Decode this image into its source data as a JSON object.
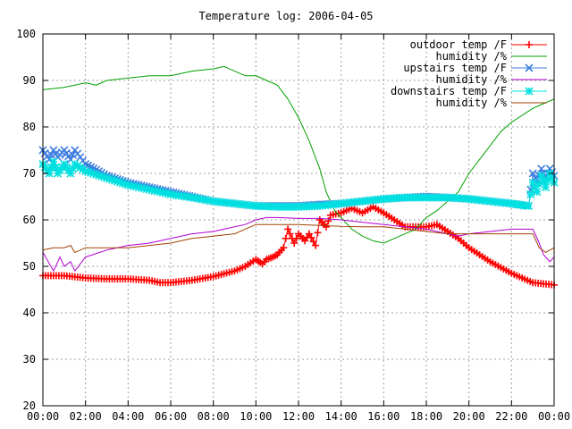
{
  "chart_data": {
    "type": "line",
    "title": "Temperature log: 2006-04-05",
    "xlabel": "",
    "ylabel": "",
    "xlim": [
      0,
      24
    ],
    "ylim": [
      20,
      100
    ],
    "grid": true,
    "legend_position": "top-right",
    "x_ticks": [
      {
        "value": 0,
        "label": "00:00"
      },
      {
        "value": 2,
        "label": "02:00"
      },
      {
        "value": 4,
        "label": "04:00"
      },
      {
        "value": 6,
        "label": "06:00"
      },
      {
        "value": 8,
        "label": "08:00"
      },
      {
        "value": 10,
        "label": "10:00"
      },
      {
        "value": 12,
        "label": "12:00"
      },
      {
        "value": 14,
        "label": "14:00"
      },
      {
        "value": 16,
        "label": "16:00"
      },
      {
        "value": 18,
        "label": "18:00"
      },
      {
        "value": 20,
        "label": "20:00"
      },
      {
        "value": 22,
        "label": "22:00"
      },
      {
        "value": 24,
        "label": "00:00"
      }
    ],
    "y_ticks": [
      20,
      30,
      40,
      50,
      60,
      70,
      80,
      90,
      100
    ],
    "series": [
      {
        "name": "outdoor temp /F",
        "color": "#ff0000",
        "marker": "plus",
        "x": [
          0,
          1,
          2,
          3,
          4,
          5,
          5.5,
          6,
          7,
          8,
          9,
          9.5,
          10,
          10.3,
          10.5,
          10.8,
          11,
          11.3,
          11.5,
          11.8,
          12,
          12.3,
          12.5,
          12.8,
          13,
          13.3,
          13.5,
          14,
          14.5,
          15,
          15.5,
          16,
          16.5,
          17,
          17.5,
          18,
          18.5,
          19,
          19.5,
          20,
          21,
          22,
          23,
          24
        ],
        "y": [
          48,
          48,
          47.5,
          47.3,
          47.3,
          47,
          46.5,
          46.5,
          47,
          47.8,
          49,
          50,
          51.5,
          50.5,
          51.5,
          52,
          52.5,
          54,
          58,
          55,
          57,
          55.5,
          57,
          54.5,
          60,
          58.5,
          61,
          61.5,
          62.5,
          61.5,
          62.8,
          61.5,
          60,
          58.5,
          58.5,
          58.5,
          59,
          57.5,
          56,
          54,
          51,
          48.5,
          46.5,
          46
        ]
      },
      {
        "name": "humidity /%",
        "color": "#00a000",
        "marker": "none",
        "x": [
          0,
          1,
          1.5,
          2,
          2.5,
          3,
          4,
          5,
          6,
          7,
          8,
          8.5,
          9,
          9.5,
          10,
          10.5,
          11,
          11.5,
          12,
          12.5,
          13,
          13.3,
          13.7,
          14,
          14.5,
          15,
          15.5,
          16,
          16.5,
          17,
          17.5,
          18,
          18.5,
          19,
          19.5,
          20,
          20.5,
          21,
          21.5,
          22,
          22.5,
          23,
          23.5,
          24
        ],
        "y": [
          88,
          88.5,
          89,
          89.5,
          89,
          90,
          90.5,
          91,
          91,
          92,
          92.5,
          93,
          92,
          91,
          91,
          90,
          89,
          86,
          82,
          77,
          71,
          66,
          62,
          60.5,
          58,
          56.5,
          55.5,
          55,
          56,
          57,
          58,
          60.5,
          62,
          64,
          66,
          70,
          73,
          76,
          79,
          81,
          82.5,
          84,
          85,
          86
        ]
      },
      {
        "name": "upstairs temp /F",
        "color": "#3f7fe0",
        "marker": "cross",
        "x": [
          0,
          0.3,
          0.5,
          0.7,
          1,
          1.3,
          1.5,
          2,
          3,
          4,
          5,
          6,
          7,
          8,
          9,
          10,
          11,
          12,
          13,
          14,
          15,
          16,
          17,
          18,
          19,
          20,
          21,
          22,
          22.8,
          23,
          23.2,
          23.4,
          23.6,
          23.8,
          24
        ],
        "y": [
          75,
          73,
          75,
          73.5,
          75,
          73,
          75,
          72,
          69.5,
          68,
          67,
          66,
          65,
          64,
          63.5,
          63,
          63,
          63,
          63.3,
          63.5,
          64,
          64.5,
          64.8,
          65,
          64.8,
          64.5,
          64,
          63.5,
          63,
          70,
          68,
          71,
          69,
          71,
          69.5
        ]
      },
      {
        "name": "humidity /%",
        "color": "#b000d0",
        "marker": "none",
        "x": [
          0,
          0.5,
          0.8,
          1,
          1.3,
          1.5,
          2,
          3,
          4,
          5,
          6,
          7,
          8,
          9,
          9.5,
          10,
          10.5,
          11,
          12,
          13,
          14,
          15,
          16,
          17,
          18,
          19,
          19.5,
          20,
          21,
          22,
          23,
          23.3,
          23.5,
          23.8,
          24
        ],
        "y": [
          53,
          49,
          52,
          50,
          51,
          49,
          52,
          53.5,
          54.5,
          55,
          56,
          57,
          57.5,
          58.5,
          59,
          60,
          60.5,
          60.5,
          60.3,
          60.3,
          60,
          59.5,
          59,
          58.5,
          58,
          57,
          56.5,
          57,
          57.5,
          58,
          58,
          55,
          52.5,
          51,
          52
        ]
      },
      {
        "name": "downstairs temp /F",
        "color": "#00e0e0",
        "marker": "star",
        "x": [
          0,
          0.3,
          0.5,
          0.7,
          1,
          1.3,
          1.5,
          2,
          3,
          4,
          5,
          6,
          7,
          8,
          9,
          10,
          11,
          12,
          13,
          14,
          15,
          16,
          17,
          18,
          19,
          20,
          21,
          22,
          22.8,
          23,
          23.2,
          23.4,
          23.6,
          23.8,
          24
        ],
        "y": [
          72,
          70,
          72.5,
          70,
          72,
          70,
          72,
          70.5,
          69,
          67.5,
          66.5,
          65.5,
          64.8,
          64,
          63.5,
          63,
          62.8,
          62.8,
          63,
          63.5,
          64,
          64.5,
          64.8,
          64.8,
          64.8,
          64.5,
          64,
          63.5,
          63,
          68,
          66,
          69.5,
          67,
          70,
          68
        ]
      },
      {
        "name": "humidity /%",
        "color": "#a04000",
        "marker": "none",
        "x": [
          0,
          0.5,
          1,
          1.3,
          1.5,
          2,
          3,
          4,
          5,
          6,
          7,
          8,
          9,
          9.5,
          10,
          11,
          12,
          13,
          14,
          15,
          16,
          17,
          18,
          19,
          20,
          21,
          22,
          23,
          23.3,
          23.6,
          24
        ],
        "y": [
          53.5,
          54,
          54,
          54.5,
          53,
          54,
          54,
          54,
          54.5,
          55,
          56,
          56.5,
          57,
          58,
          59,
          59,
          59,
          58.8,
          58.6,
          58.5,
          58.5,
          58,
          57.5,
          57,
          57,
          57,
          57,
          57,
          54,
          53,
          54
        ]
      }
    ]
  }
}
